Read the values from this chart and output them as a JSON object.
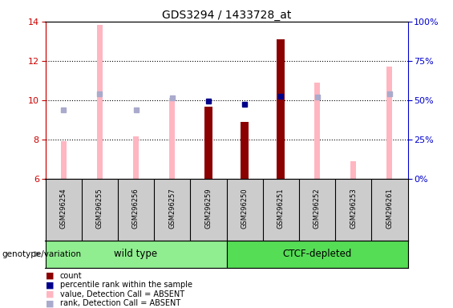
{
  "title": "GDS3294 / 1433728_at",
  "samples": [
    "GSM296254",
    "GSM296255",
    "GSM296256",
    "GSM296257",
    "GSM296259",
    "GSM296250",
    "GSM296251",
    "GSM296252",
    "GSM296253",
    "GSM296261"
  ],
  "ylim_left": [
    6,
    14
  ],
  "ylim_right": [
    0,
    100
  ],
  "yticks_left": [
    6,
    8,
    10,
    12,
    14
  ],
  "yticks_right": [
    0,
    25,
    50,
    75,
    100
  ],
  "ytick_labels_right": [
    "0%",
    "25%",
    "50%",
    "75%",
    "100%"
  ],
  "count_bars": {
    "indices": [
      4,
      5,
      6
    ],
    "values": [
      9.65,
      8.9,
      13.1
    ],
    "color": "#8B0000"
  },
  "rank_markers": {
    "indices": [
      4,
      5,
      6
    ],
    "values": [
      9.95,
      9.8,
      10.2
    ],
    "color": "#00008B"
  },
  "absent_value_bars": {
    "indices": [
      0,
      1,
      2,
      3,
      7,
      8,
      9
    ],
    "values": [
      7.9,
      13.85,
      8.15,
      10.1,
      10.9,
      6.9,
      11.7
    ],
    "color": "#FFB6C1"
  },
  "absent_rank_markers": {
    "indices": [
      0,
      1,
      2,
      3,
      7,
      9
    ],
    "values": [
      9.5,
      10.3,
      9.5,
      10.1,
      10.15,
      10.3
    ],
    "color": "#AAAACC"
  },
  "wt_color": "#90EE90",
  "ctcf_color": "#55DD55",
  "legend_items": [
    {
      "label": "count",
      "color": "#8B0000"
    },
    {
      "label": "percentile rank within the sample",
      "color": "#00008B"
    },
    {
      "label": "value, Detection Call = ABSENT",
      "color": "#FFB6C1"
    },
    {
      "label": "rank, Detection Call = ABSENT",
      "color": "#AAAACC"
    }
  ],
  "left_axis_color": "#CC0000",
  "right_axis_color": "#0000CC",
  "grid_dotted_at": [
    8,
    10,
    12
  ]
}
